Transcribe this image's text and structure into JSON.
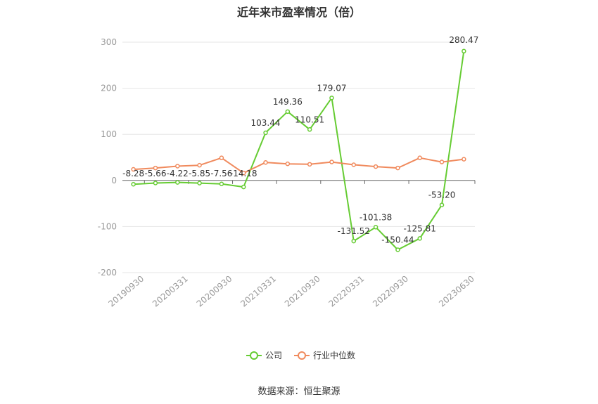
{
  "chart_data": {
    "type": "line",
    "title": "近年来市盈率情况（倍）",
    "source": "数据来源：恒生聚源",
    "x_tick_labels": [
      "20190930",
      "20200331",
      "20200930",
      "20210331",
      "20210930",
      "20220331",
      "20220930",
      "20230630"
    ],
    "x": [
      "20190930",
      "20191231",
      "20200331",
      "20200630",
      "20200930",
      "20201231",
      "20210331",
      "20210630",
      "20210930",
      "20211231",
      "20220331",
      "20220630",
      "20220930",
      "20221231",
      "20230331",
      "20230630"
    ],
    "ylim": [
      -200,
      300
    ],
    "yticks": [
      -200,
      -100,
      0,
      100,
      200,
      300
    ],
    "grid": true,
    "legend_position": "bottom",
    "series": [
      {
        "name": "公司",
        "color": "#66cc33",
        "values": [
          -8.28,
          -5.66,
          -4.22,
          -5.85,
          -7.56,
          -14.18,
          103.44,
          149.36,
          110.51,
          179.07,
          -131.52,
          -101.38,
          -150.44,
          -125.81,
          -53.2,
          280.47
        ],
        "labels": [
          "-8.28",
          "-5.66",
          "-4.22",
          "-5.85",
          "-7.56",
          "-14.18",
          "103.44",
          "149.36",
          "110.51",
          "179.07",
          "-131.52",
          "-101.38",
          "-150.44",
          "-125.81",
          "-53.20",
          "280.47"
        ]
      },
      {
        "name": "行业中位数",
        "color": "#f08a5d",
        "values": [
          24,
          27,
          31,
          33,
          49,
          16,
          39,
          36,
          35,
          40,
          34,
          30,
          27,
          49,
          40,
          46
        ]
      }
    ]
  }
}
